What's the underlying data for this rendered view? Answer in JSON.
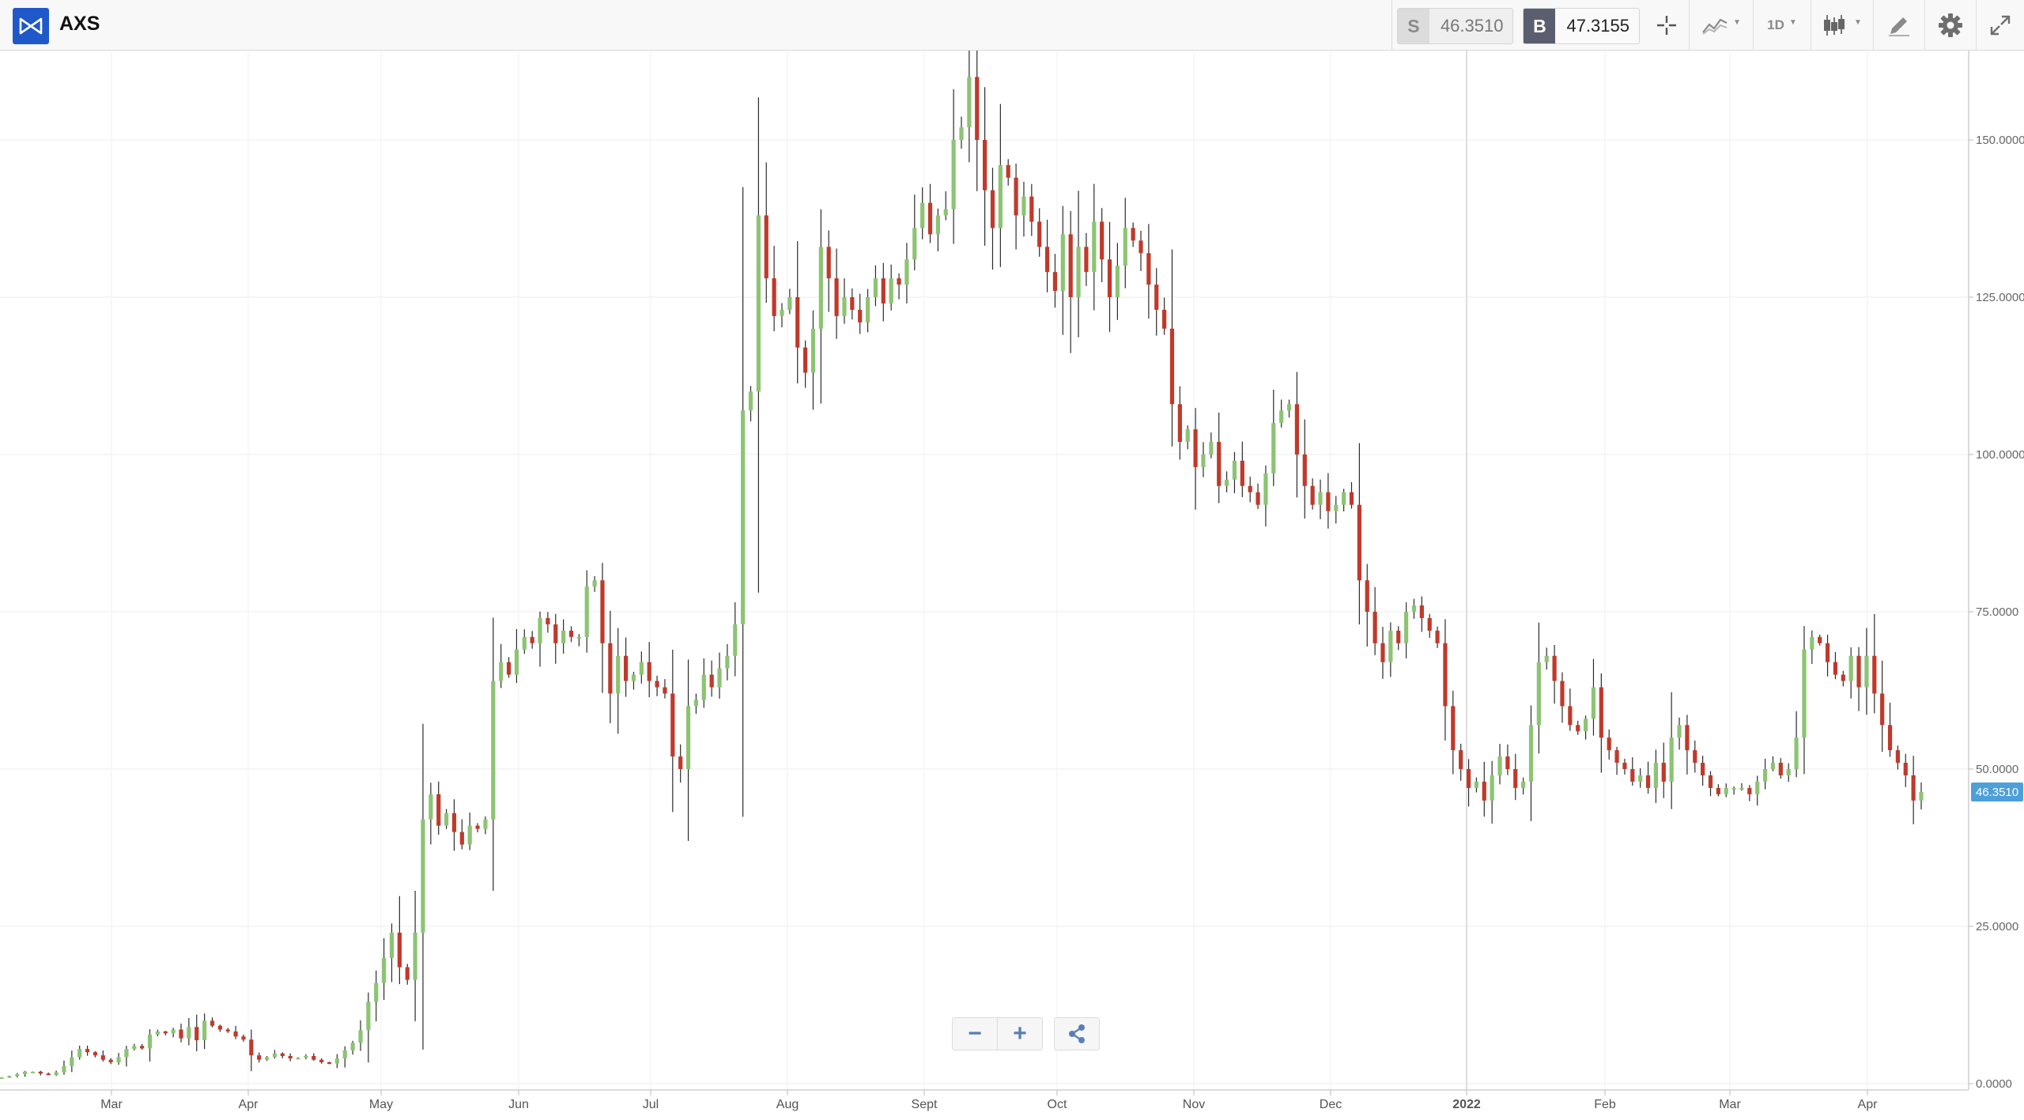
{
  "header": {
    "symbol": "AXS",
    "sell_label": "S",
    "sell_price": "46.3510",
    "buy_label": "B",
    "buy_price": "47.3155",
    "timeframe": "1D",
    "icons": [
      "axs-logo-icon",
      "crosshair-icon",
      "compare-chart-icon",
      "timeframe-dropdown",
      "candlestick-type-icon",
      "drawing-pen-icon",
      "settings-gear-icon",
      "fullscreen-icon"
    ]
  },
  "controls": {
    "zoom_out": "−",
    "zoom_in": "+",
    "share_icon": "share-icon"
  },
  "current_price_label": "46.3510",
  "chart_data": {
    "type": "candlestick",
    "symbol": "AXS",
    "interval": "1D",
    "ylim": [
      0,
      165
    ],
    "y_ticks": [
      "0.0000",
      "25.0000",
      "50.0000",
      "75.0000",
      "100.0000",
      "125.0000",
      "150.0000"
    ],
    "x_ticks": [
      "Mar",
      "Apr",
      "May",
      "Jun",
      "Jul",
      "Aug",
      "Sept",
      "Oct",
      "Nov",
      "Dec",
      "2022",
      "Feb",
      "Mar",
      "Apr"
    ],
    "grid": true,
    "colors": {
      "up": "#8cc474",
      "down": "#c0392b",
      "price_tag": "#4d9fda",
      "grid": "#ececec"
    },
    "current_price": 46.351,
    "close_series_approx": [
      1.0,
      1.2,
      1.5,
      1.9,
      1.9,
      1.6,
      1.4,
      1.8,
      2.8,
      4.2,
      5.5,
      5.0,
      4.5,
      3.8,
      3.4,
      4.2,
      5.5,
      6.0,
      5.6,
      7.8,
      8.3,
      8.0,
      8.6,
      7.2,
      9.0,
      6.9,
      10.0,
      9.2,
      8.6,
      8.3,
      7.5,
      7.0,
      4.5,
      3.8,
      4.2,
      4.8,
      4.4,
      4.0,
      4.1,
      4.4,
      3.8,
      3.4,
      3.2,
      4.0,
      5.3,
      6.5,
      8.5,
      13.0,
      16.0,
      20.0,
      24.0,
      18.5,
      16.5,
      24.0,
      42.0,
      46.0,
      41.0,
      43.0,
      40.0,
      38.0,
      41.0,
      40.5,
      42.0,
      64.0,
      67.0,
      65.0,
      69.0,
      71.0,
      70.0,
      74.0,
      73.0,
      70.0,
      72.0,
      71.0,
      71.0,
      79.0,
      80.0,
      70.0,
      62.0,
      68.0,
      64.0,
      65.0,
      67.0,
      64.0,
      63.0,
      62.0,
      52.0,
      50.0,
      60.0,
      61.0,
      65.0,
      63.0,
      66.0,
      68.0,
      73.0,
      107.0,
      110.0,
      138.0,
      128.0,
      122.0,
      123.0,
      125.0,
      117.0,
      113.0,
      120.0,
      133.0,
      128.0,
      122.0,
      125.0,
      123.0,
      121.0,
      125.0,
      128.0,
      124.0,
      128.0,
      127.0,
      131.0,
      136.0,
      140.0,
      135.0,
      138.0,
      139.0,
      150.0,
      152.0,
      160.0,
      150.0,
      142.0,
      136.0,
      146.0,
      144.0,
      138.0,
      141.0,
      137.0,
      133.0,
      129.0,
      126.0,
      135.0,
      125.0,
      133.0,
      129.0,
      137.0,
      131.0,
      125.0,
      130.0,
      136.0,
      134.0,
      132.0,
      127.0,
      123.0,
      120.0,
      108.0,
      102.0,
      104.0,
      98.0,
      100.0,
      102.0,
      95.0,
      96.0,
      99.0,
      95.0,
      94.0,
      92.0,
      97.0,
      105.0,
      107.0,
      108.0,
      100.0,
      95.0,
      92.0,
      94.0,
      91.0,
      92.0,
      94.0,
      92.0,
      80.0,
      75.0,
      70.0,
      67.0,
      72.0,
      70.0,
      75.0,
      76.0,
      74.0,
      72.0,
      70.0,
      60.0,
      53.0,
      50.0,
      47.0,
      48.0,
      45.0,
      49.0,
      52.0,
      50.0,
      47.0,
      48.0,
      57.0,
      67.0,
      68.0,
      64.0,
      60.0,
      57.0,
      56.0,
      58.0,
      63.0,
      55.0,
      53.0,
      51.0,
      50.0,
      48.0,
      49.0,
      47.0,
      51.0,
      48.0,
      55.0,
      57.0,
      53.0,
      51.0,
      49.0,
      47.0,
      46.0,
      47.0,
      47.0,
      47.0,
      46.0,
      48.0,
      50.0,
      51.0,
      49.0,
      50.0,
      55.0,
      69.0,
      71.0,
      70.0,
      67.0,
      65.0,
      64.0,
      68.0,
      63.0,
      68.0,
      62.0,
      57.0,
      53.0,
      51.0,
      49.0,
      45.0,
      46.351
    ]
  }
}
